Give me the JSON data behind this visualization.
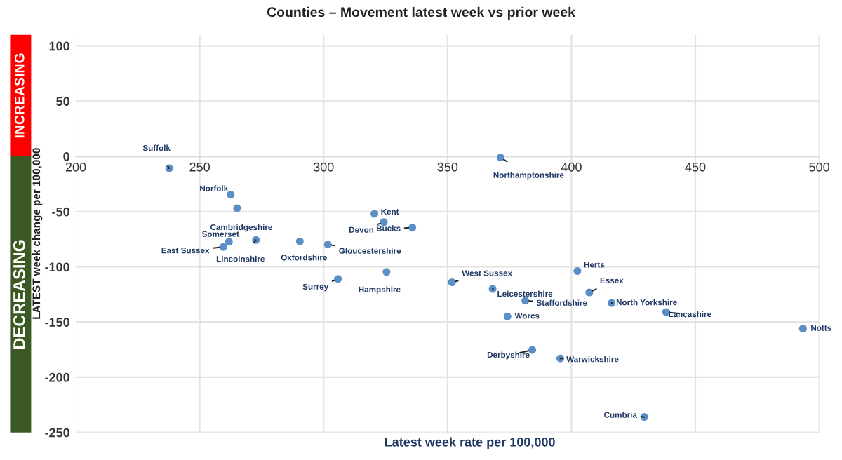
{
  "chart_data": {
    "type": "scatter",
    "title": "Counties – Movement latest week vs prior week",
    "xlabel": "Latest week rate per 100,000",
    "ylabel": "LATEST week change per 100,000",
    "x": [
      237.7,
      371.4,
      262.5,
      265.1,
      320.5,
      335.8,
      324.3,
      261.8,
      259.5,
      272.7,
      290.4,
      301.7,
      305.8,
      325.4,
      351.8,
      368.2,
      381.4,
      374.2,
      402.4,
      407.2,
      416.2,
      438.2,
      493.4,
      384.2,
      395.5,
      429.4
    ],
    "series": [
      {
        "color": "#5b8fc7",
        "values": [
          -10.8,
          -1,
          -34.7,
          -47,
          -52,
          -64.5,
          -59.5,
          -77.3,
          -82,
          -75.7,
          -77,
          -79.8,
          -111,
          -104.6,
          -114,
          -120,
          -130.7,
          -145,
          -103.8,
          -123.2,
          -132.8,
          -141,
          -156,
          -175.3,
          -183,
          -236
        ]
      }
    ],
    "annotations": [
      "INCREASING",
      "DECREASING",
      {
        "text": "Suffolk",
        "x": 237.7,
        "y": -10.8
      },
      {
        "text": "Northamptonshire",
        "x": 371.4,
        "y": -1
      },
      {
        "text": "Norfolk",
        "x": 262.5,
        "y": -34.7
      },
      {
        "text": "Cambridgeshire",
        "x": 265.1,
        "y": -47
      },
      {
        "text": "Kent",
        "x": 320.5,
        "y": -52
      },
      {
        "text": "Bucks",
        "x": 335.8,
        "y": -64.5
      },
      {
        "text": "Devon",
        "x": 324.3,
        "y": -59.5
      },
      {
        "text": "Somerset",
        "x": 261.8,
        "y": -77.3
      },
      {
        "text": "East Sussex",
        "x": 259.5,
        "y": -82
      },
      {
        "text": "Lincolnshire",
        "x": 272.7,
        "y": -75.7
      },
      {
        "text": "Oxfordshire",
        "x": 290.4,
        "y": -77
      },
      {
        "text": "Gloucestershire",
        "x": 301.7,
        "y": -79.8
      },
      {
        "text": "Surrey",
        "x": 305.8,
        "y": -111
      },
      {
        "text": "Hampshire",
        "x": 325.4,
        "y": -104.6
      },
      {
        "text": "West Sussex",
        "x": 351.8,
        "y": -114
      },
      {
        "text": "Leicestershire",
        "x": 368.2,
        "y": -120
      },
      {
        "text": "Staffordshire",
        "x": 381.4,
        "y": -130.7
      },
      {
        "text": "Worcs",
        "x": 374.2,
        "y": -145
      },
      {
        "text": "Herts",
        "x": 402.4,
        "y": -103.8
      },
      {
        "text": "Essex",
        "x": 407.2,
        "y": -123.2
      },
      {
        "text": "North Yorkshire",
        "x": 416.2,
        "y": -132.8
      },
      {
        "text": "Lancashire",
        "x": 438.2,
        "y": -141
      },
      {
        "text": "Notts",
        "x": 493.4,
        "y": -156
      },
      {
        "text": "Derbyshire",
        "x": 384.2,
        "y": -175.3
      },
      {
        "text": "Warwickshire",
        "x": 395.5,
        "y": -183
      },
      {
        "text": "Cumbria",
        "x": 429.4,
        "y": -236
      }
    ],
    "xlim": [
      200,
      500
    ],
    "xticks": [
      200,
      250,
      300,
      350,
      400,
      450,
      500
    ],
    "ylim": [
      -250,
      110
    ],
    "yticks": [
      -250,
      -200,
      -150,
      -100,
      -50,
      0,
      50,
      100
    ],
    "grid": true,
    "legend": false,
    "marker": "circle"
  }
}
